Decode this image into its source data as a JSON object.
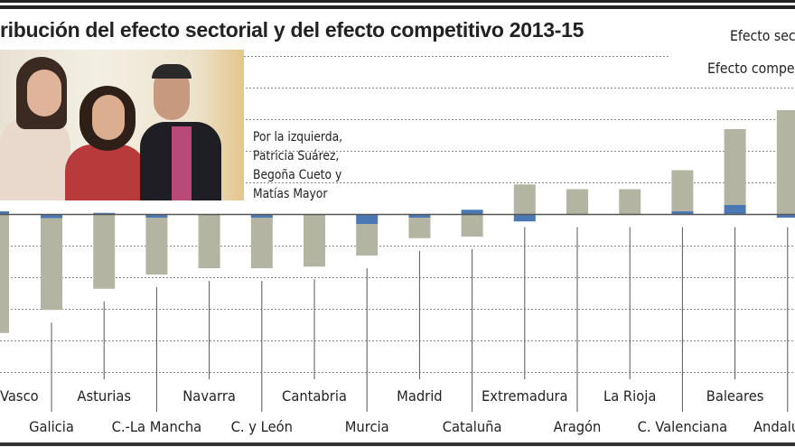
{
  "title": "ribución del efecto sectorial y del efecto competitivo 2013-15",
  "legend": {
    "sectorial": "Efecto sec",
    "competitivo": "Efecto compe"
  },
  "caption": [
    "Por la izquierda,",
    "Patricia Suárez,",
    "Begoña Cueto y",
    "Matías Mayor"
  ],
  "chart_data": {
    "type": "bar",
    "stacked": true,
    "title": "ribución del efecto sectorial y del efecto competitivo 2013-15",
    "categories": [
      "Vasco",
      "Galicia",
      "Asturias",
      "C.-La Mancha",
      "Navarra",
      "C. y León",
      "Cantabria",
      "Murcia",
      "Madrid",
      "Cataluña",
      "Extremadura",
      "Aragón",
      "La Rioja",
      "C. Valenciana",
      "Baleares",
      "Andalu"
    ],
    "series": [
      {
        "name": "Efecto sec",
        "color": "#b3b5a2",
        "values": [
          -3.75,
          -2.9,
          -2.35,
          -1.8,
          -1.7,
          -1.6,
          -1.65,
          -1.0,
          -0.65,
          -0.7,
          0.95,
          0.8,
          0.8,
          1.3,
          2.4,
          3.3
        ]
      },
      {
        "name": "Efecto compe",
        "color": "#4a78b5",
        "values": [
          0.1,
          -0.12,
          0.05,
          -0.1,
          0,
          -0.1,
          0,
          -0.3,
          -0.1,
          0.15,
          -0.22,
          0,
          0,
          0.1,
          0.3,
          -0.1
        ]
      }
    ],
    "ylim": [
      -5,
      5
    ],
    "grid": true,
    "axis_ticks_shown": false,
    "legend": "top-right"
  }
}
